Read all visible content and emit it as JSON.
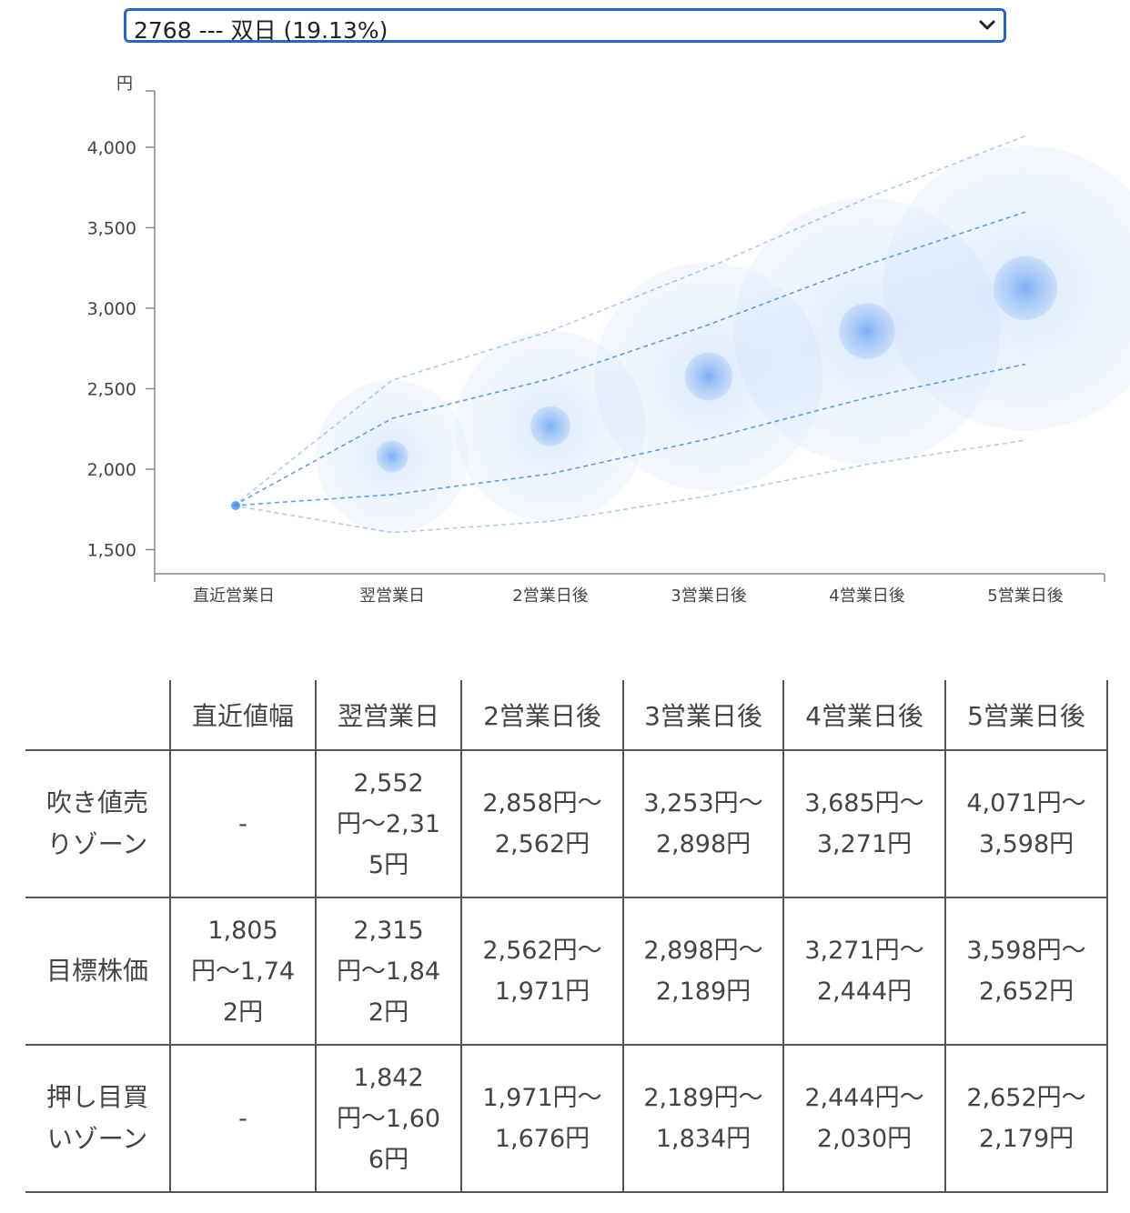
{
  "selector": {
    "selected": "2768 --- 双日 (19.13%)"
  },
  "chart_data": {
    "type": "scatter",
    "ylabel": "円",
    "categories": [
      "直近営業日",
      "翌営業日",
      "2営業日後",
      "3営業日後",
      "4営業日後",
      "5営業日後"
    ],
    "y_ticks": [
      "1,500",
      "2,000",
      "2,500",
      "3,000",
      "3,500",
      "4,000"
    ],
    "ylim": [
      1350,
      4350
    ],
    "last_price": 1774,
    "center": [
      1774,
      2079,
      2267,
      2576,
      2858,
      3125
    ],
    "inner_upper": [
      1774,
      2315,
      2562,
      2898,
      3271,
      3598
    ],
    "inner_lower": [
      1774,
      1842,
      1971,
      2189,
      2444,
      2652
    ],
    "outer_upper": [
      1774,
      2552,
      2858,
      3253,
      3685,
      4071
    ],
    "outer_lower": [
      1774,
      1606,
      1676,
      1834,
      2030,
      2179
    ],
    "colors": {
      "bubble": "#2f80ed",
      "line": "#4a8fe0",
      "axis": "#888888"
    }
  },
  "table": {
    "headers": [
      "",
      "直近値幅",
      "翌営業日",
      "2営業日後",
      "3営業日後",
      "4営業日後",
      "5営業日後"
    ],
    "rows": [
      {
        "label": "吹き値売りゾーン",
        "cells": [
          "-",
          "2,552円〜2,315円",
          "2,858円〜2,562円",
          "3,253円〜2,898円",
          "3,685円〜3,271円",
          "4,071円〜3,598円"
        ]
      },
      {
        "label": "目標株価",
        "cells": [
          "1,805円〜1,742円",
          "2,315円〜1,842円",
          "2,562円〜1,971円",
          "2,898円〜2,189円",
          "3,271円〜2,444円",
          "3,598円〜2,652円"
        ]
      },
      {
        "label": "押し目買いゾーン",
        "cells": [
          "-",
          "1,842円〜1,606円",
          "1,971円〜1,676円",
          "2,189円〜1,834円",
          "2,444円〜2,030円",
          "2,652円〜2,179円"
        ]
      }
    ]
  }
}
